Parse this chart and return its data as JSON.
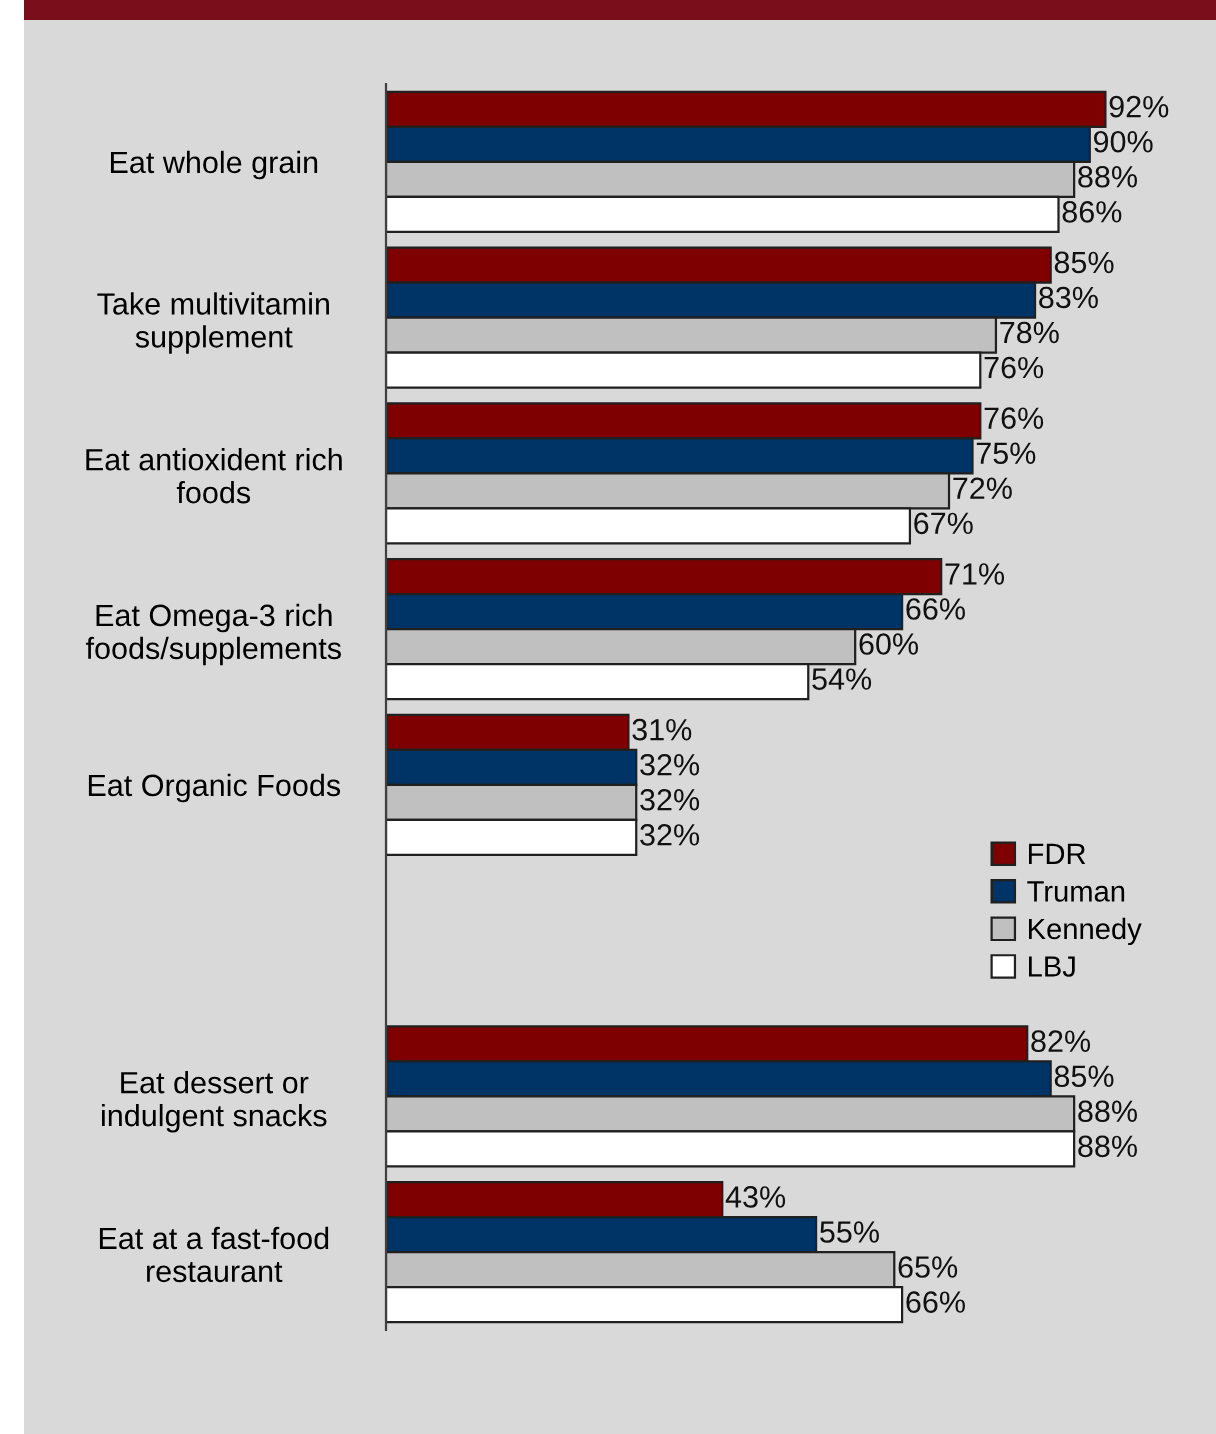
{
  "chart_data": {
    "type": "bar",
    "orientation": "horizontal",
    "categories": [
      "Eat whole grain",
      "Take multivitamin\nsupplement",
      "Eat antioxident rich\nfoods",
      "Eat Omega-3 rich\nfoods/supplements",
      "Eat Organic Foods",
      null,
      "Eat dessert or\nindulgent snacks",
      "Eat at a fast-food\nrestaurant"
    ],
    "series": [
      {
        "name": "FDR",
        "color": "#7f0000",
        "values": [
          92,
          85,
          76,
          71,
          31,
          null,
          82,
          43
        ],
        "value_labels": [
          "92%",
          "85%",
          "76%",
          "71%",
          "31%",
          null,
          "82%",
          "43%"
        ]
      },
      {
        "name": "Truman",
        "color": "#003366",
        "values": [
          90,
          83,
          75,
          66,
          32,
          null,
          85,
          55
        ],
        "value_labels": [
          "90%",
          "83%",
          "75%",
          "66%",
          "32%",
          null,
          "85%",
          "55%"
        ]
      },
      {
        "name": "Kennedy",
        "color": "#c0c0c0",
        "values": [
          88,
          78,
          72,
          60,
          32,
          null,
          88,
          65
        ],
        "value_labels": [
          "88%",
          "78%",
          "72%",
          "60%",
          "32%",
          null,
          "88%",
          "65%"
        ]
      },
      {
        "name": "LBJ",
        "color": "#ffffff",
        "values": [
          86,
          76,
          67,
          54,
          32,
          null,
          88,
          66
        ],
        "value_labels": [
          "86%",
          "76%",
          "67%",
          "54%",
          "32%",
          null,
          "88%",
          "66%"
        ]
      }
    ],
    "legend": "right"
  }
}
